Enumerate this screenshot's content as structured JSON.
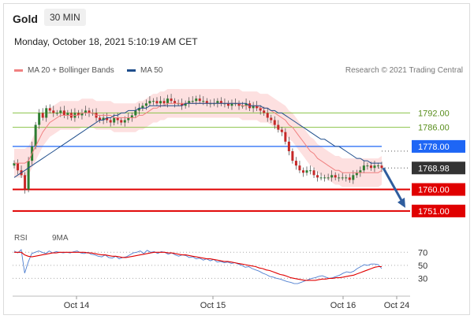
{
  "header": {
    "instrument": "Gold",
    "timeframe": "30 MIN",
    "datetime": "Monday, October 18, 2021 5:10:19 AM CET",
    "credit": "Research © 2021 Trading Central"
  },
  "colors": {
    "ma20": "#f08080",
    "ma50": "#1f4e8c",
    "band": "#fde0e0",
    "candle_up": "#2e7d32",
    "candle_down": "#c62828",
    "resistance": "#8bc34a",
    "pivot": "#1e66f5",
    "support": "#e00000",
    "current": "#333333",
    "arrow": "#2f5d9e",
    "rsi": "#4f7fd0",
    "rsi_ma": "#e00000"
  },
  "legend": {
    "ma20_label": "MA 20 + Bollinger Bands",
    "ma50_label": "MA 50",
    "rsi_label": "RSI",
    "rsi_ma_label": "9MA"
  },
  "chart_data": [
    {
      "type": "candlestick",
      "title": "Gold",
      "ylim": [
        1747,
        1803
      ],
      "x_tick_labels": [
        "Oct 14",
        "Oct 15",
        "Oct 16",
        "Oct 24"
      ],
      "levels": [
        {
          "value": 1792.0,
          "label": "1792.00",
          "kind": "resistance"
        },
        {
          "value": 1786.0,
          "label": "1786.00",
          "kind": "resistance"
        },
        {
          "value": 1778.0,
          "label": "1778.00",
          "kind": "pivot"
        },
        {
          "value": 1768.98,
          "label": "1768.98",
          "kind": "current"
        },
        {
          "value": 1760.0,
          "label": "1760.00",
          "kind": "support"
        },
        {
          "value": 1751.0,
          "label": "1751.00",
          "kind": "support"
        }
      ],
      "closes": [
        1771,
        1768,
        1766,
        1760,
        1772,
        1778,
        1787,
        1792,
        1790,
        1794,
        1793,
        1792,
        1792,
        1793,
        1791,
        1792,
        1790,
        1792,
        1791,
        1792,
        1793,
        1792,
        1792,
        1790,
        1789,
        1790,
        1789,
        1788,
        1790,
        1789,
        1788,
        1789,
        1790,
        1791,
        1793,
        1794,
        1795,
        1796,
        1797,
        1797,
        1796,
        1797,
        1796,
        1798,
        1797,
        1796,
        1796,
        1795,
        1796,
        1797,
        1797,
        1798,
        1797,
        1797,
        1796,
        1796,
        1796,
        1797,
        1796,
        1796,
        1795,
        1796,
        1796,
        1795,
        1795,
        1796,
        1794,
        1795,
        1794,
        1793,
        1792,
        1790,
        1789,
        1787,
        1785,
        1784,
        1780,
        1776,
        1772,
        1770,
        1768,
        1767,
        1768,
        1768,
        1766,
        1765,
        1765,
        1765,
        1765,
        1766,
        1765,
        1765,
        1765,
        1765,
        1764,
        1766,
        1767,
        1768,
        1770,
        1770,
        1769,
        1770,
        1770,
        1769
      ],
      "ma20": [
        1771,
        1771,
        1771,
        1771,
        1772,
        1775,
        1778,
        1781,
        1784,
        1786,
        1788,
        1789,
        1790,
        1791,
        1791,
        1791,
        1791,
        1791,
        1791,
        1792,
        1792,
        1792,
        1792,
        1791,
        1791,
        1791,
        1791,
        1791,
        1790,
        1790,
        1790,
        1790,
        1790,
        1790,
        1790,
        1791,
        1791,
        1792,
        1793,
        1794,
        1794,
        1795,
        1795,
        1796,
        1796,
        1796,
        1796,
        1796,
        1796,
        1796,
        1796,
        1796,
        1796,
        1796,
        1796,
        1796,
        1796,
        1796,
        1796,
        1796,
        1796,
        1796,
        1796,
        1796,
        1795,
        1795,
        1795,
        1795,
        1795,
        1794,
        1794,
        1794,
        1793,
        1792,
        1791,
        1790,
        1789,
        1787,
        1786,
        1784,
        1782,
        1780,
        1778,
        1776,
        1775,
        1773,
        1772,
        1771,
        1770,
        1769,
        1768,
        1768,
        1767,
        1767,
        1767,
        1767,
        1767,
        1767,
        1767,
        1767,
        1767,
        1767,
        1767,
        1768
      ],
      "ma50": [
        1765,
        1766,
        1767,
        1768,
        1769,
        1770,
        1771,
        1772,
        1773,
        1774,
        1775,
        1776,
        1777,
        1778,
        1779,
        1780,
        1781,
        1782,
        1783,
        1784,
        1785,
        1786,
        1787,
        1788,
        1789,
        1789,
        1790,
        1790,
        1791,
        1791,
        1792,
        1792,
        1793,
        1793,
        1793,
        1794,
        1794,
        1794,
        1795,
        1795,
        1795,
        1795,
        1795,
        1795,
        1795,
        1795,
        1795,
        1795,
        1796,
        1796,
        1796,
        1796,
        1796,
        1796,
        1796,
        1796,
        1796,
        1796,
        1796,
        1796,
        1796,
        1796,
        1796,
        1796,
        1796,
        1796,
        1795,
        1795,
        1795,
        1795,
        1794,
        1794,
        1793,
        1793,
        1792,
        1792,
        1791,
        1790,
        1789,
        1788,
        1787,
        1786,
        1785,
        1784,
        1783,
        1782,
        1781,
        1781,
        1780,
        1779,
        1778,
        1778,
        1777,
        1776,
        1775,
        1774,
        1773,
        1773,
        1772,
        1772,
        1771,
        1771,
        1771,
        1771
      ],
      "band_width": 6
    },
    {
      "type": "line",
      "title": "RSI",
      "ylim": [
        10,
        80
      ],
      "y_tick_labels": [
        "70",
        "50",
        "30"
      ],
      "y_ticks": [
        70,
        50,
        30
      ],
      "series": [
        {
          "name": "RSI",
          "values": [
            72,
            69,
            74,
            38,
            55,
            68,
            70,
            72,
            70,
            68,
            72,
            69,
            71,
            70,
            69,
            70,
            69,
            71,
            72,
            69,
            68,
            70,
            67,
            66,
            64,
            63,
            66,
            62,
            61,
            64,
            60,
            62,
            63,
            66,
            69,
            70,
            72,
            68,
            73,
            70,
            71,
            68,
            71,
            70,
            67,
            69,
            66,
            64,
            66,
            65,
            62,
            63,
            60,
            61,
            58,
            60,
            57,
            59,
            55,
            56,
            54,
            55,
            53,
            54,
            52,
            50,
            47,
            48,
            45,
            43,
            41,
            38,
            36,
            33,
            32,
            30,
            29,
            27,
            25,
            24,
            22,
            22,
            24,
            26,
            28,
            30,
            31,
            33,
            34,
            32,
            30,
            31,
            33,
            35,
            38,
            40,
            39,
            41,
            45,
            48,
            51,
            50,
            52,
            52,
            51,
            45
          ]
        },
        {
          "name": "9MA",
          "values": [
            70,
            70,
            70,
            66,
            64,
            63,
            64,
            65,
            66,
            67,
            68,
            69,
            69,
            70,
            70,
            70,
            70,
            70,
            70,
            70,
            70,
            69,
            69,
            68,
            67,
            66,
            66,
            65,
            64,
            64,
            63,
            62,
            62,
            63,
            64,
            65,
            66,
            67,
            68,
            69,
            70,
            70,
            70,
            70,
            69,
            69,
            68,
            67,
            66,
            66,
            65,
            64,
            63,
            62,
            61,
            60,
            60,
            59,
            58,
            57,
            56,
            56,
            55,
            54,
            53,
            52,
            51,
            50,
            49,
            48,
            46,
            45,
            43,
            42,
            40,
            38,
            36,
            35,
            33,
            31,
            30,
            29,
            28,
            27,
            27,
            27,
            27,
            28,
            29,
            29,
            30,
            30,
            31,
            31,
            32,
            33,
            34,
            35,
            37,
            39,
            41,
            43,
            45,
            47,
            48,
            48
          ]
        }
      ]
    }
  ]
}
